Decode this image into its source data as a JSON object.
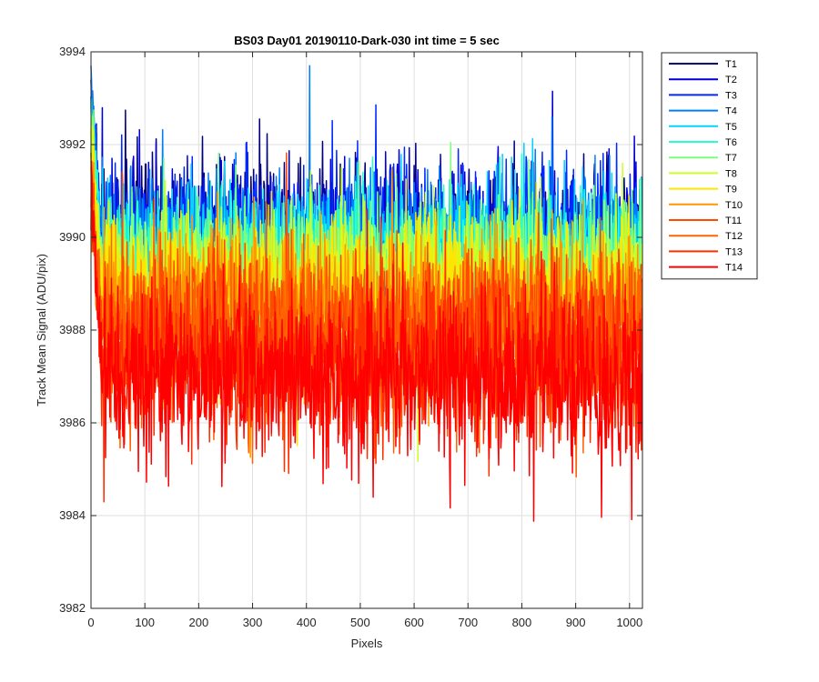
{
  "chart_data": {
    "type": "line",
    "title": "BS03 Day01 20190110-Dark-030 int time = 5 sec",
    "xlabel": "Pixels",
    "ylabel": "Track Mean Signal (ADU/pix)",
    "xlim": [
      0,
      1024
    ],
    "ylim": [
      3982,
      3994
    ],
    "xticks": [
      0,
      100,
      200,
      300,
      400,
      500,
      600,
      700,
      800,
      900,
      1000
    ],
    "yticks": [
      3982,
      3984,
      3986,
      3988,
      3990,
      3992,
      3994
    ],
    "grid": true,
    "legend_position": "outside-top-right",
    "n_pixels": 1024,
    "series": [
      {
        "name": "T1",
        "color": "#00007f",
        "mean": 3990.0,
        "spread": 0.75,
        "start": 3993.3
      },
      {
        "name": "T2",
        "color": "#0000d4",
        "mean": 3990.0,
        "spread": 0.75,
        "start": 3993.2
      },
      {
        "name": "T3",
        "color": "#0029ff",
        "mean": 3989.9,
        "spread": 0.75,
        "start": 3993.0
      },
      {
        "name": "T4",
        "color": "#007dff",
        "mean": 3989.8,
        "spread": 0.75,
        "start": 3993.6
      },
      {
        "name": "T5",
        "color": "#00d4ff",
        "mean": 3989.7,
        "spread": 0.75,
        "start": 3992.8
      },
      {
        "name": "T6",
        "color": "#29ffcd",
        "mean": 3989.5,
        "spread": 0.75,
        "start": 3992.5
      },
      {
        "name": "T7",
        "color": "#7dff7a",
        "mean": 3989.3,
        "spread": 0.75,
        "start": 3992.2
      },
      {
        "name": "T8",
        "color": "#cdff29",
        "mean": 3989.1,
        "spread": 0.75,
        "start": 3992.0
      },
      {
        "name": "T9",
        "color": "#ffe500",
        "mean": 3988.8,
        "spread": 0.8,
        "start": 3991.7
      },
      {
        "name": "T10",
        "color": "#ff9800",
        "mean": 3988.5,
        "spread": 0.8,
        "start": 3991.5
      },
      {
        "name": "T11",
        "color": "#ff4b00",
        "mean": 3988.1,
        "spread": 0.8,
        "start": 3991.2
      },
      {
        "name": "T12",
        "color": "#ff6400",
        "mean": 3987.6,
        "spread": 0.8,
        "start": 3990.9
      },
      {
        "name": "T13",
        "color": "#ff3000",
        "mean": 3987.3,
        "spread": 0.85,
        "start": 3990.6
      },
      {
        "name": "T14",
        "color": "#ff0000",
        "mean": 3987.0,
        "spread": 0.9,
        "start": 3991.2
      }
    ]
  }
}
